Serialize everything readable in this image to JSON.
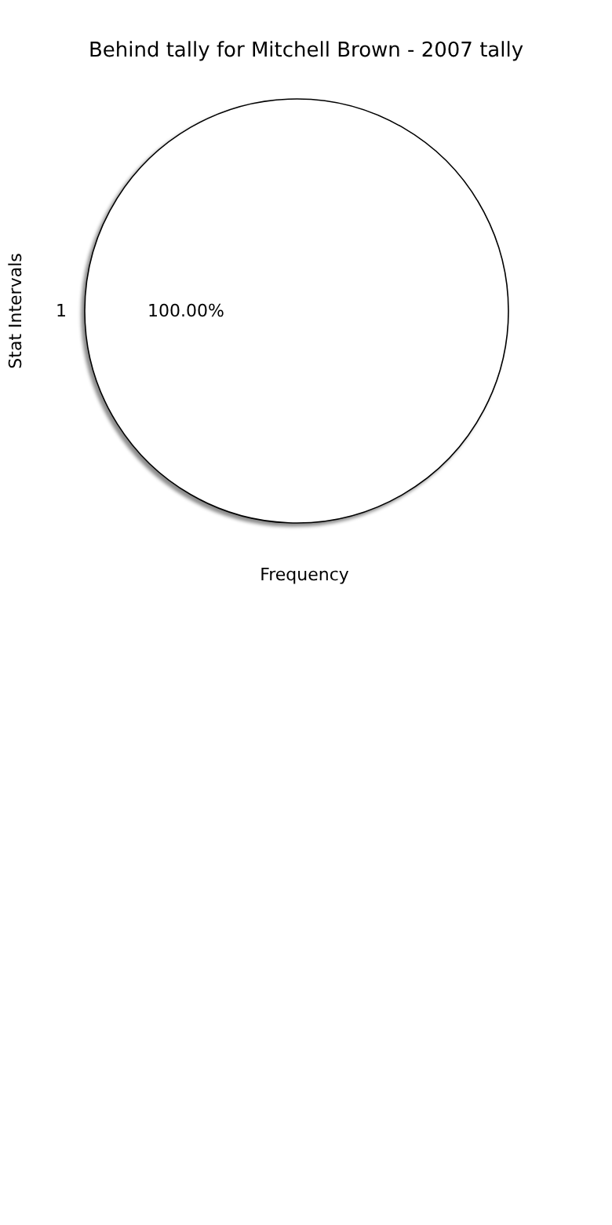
{
  "chart_data": {
    "type": "pie",
    "title": "Behind tally for Mitchell Brown - 2007 tally",
    "xlabel": "Frequency",
    "ylabel": "Stat Intervals",
    "categories": [
      "1"
    ],
    "values": [
      100
    ],
    "colors": [
      "#ffffff"
    ],
    "value_labels": [
      "100.00%"
    ],
    "legend": false
  }
}
